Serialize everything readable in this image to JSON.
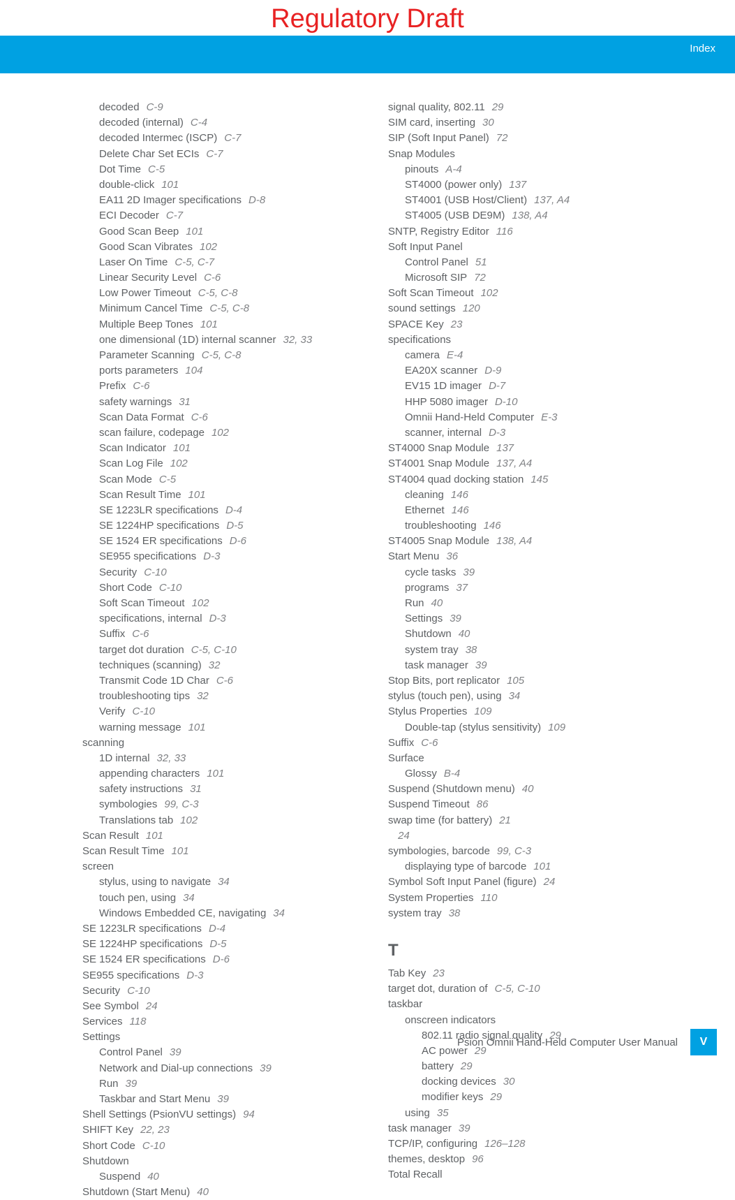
{
  "draft": "Regulatory Draft",
  "header_label": "Index",
  "footer_text": "Psion Omnii Hand-Held Computer User Manual",
  "page_num": "V",
  "section_t": "T",
  "col1": [
    {
      "i": 1,
      "t": "decoded",
      "p": "C-9"
    },
    {
      "i": 1,
      "t": "decoded (internal)",
      "p": "C-4"
    },
    {
      "i": 1,
      "t": "decoded Intermec (ISCP)",
      "p": "C-7"
    },
    {
      "i": 1,
      "t": "Delete Char Set ECIs",
      "p": "C-7"
    },
    {
      "i": 1,
      "t": "Dot Time",
      "p": "C-5"
    },
    {
      "i": 1,
      "t": "double-click",
      "p": "101"
    },
    {
      "i": 1,
      "t": "EA11 2D Imager specifications",
      "p": "D-8"
    },
    {
      "i": 1,
      "t": "ECI Decoder",
      "p": "C-7"
    },
    {
      "i": 1,
      "t": "Good Scan Beep",
      "p": "101"
    },
    {
      "i": 1,
      "t": "Good Scan Vibrates",
      "p": "102"
    },
    {
      "i": 1,
      "t": "Laser On Time",
      "p": "C-5, C-7"
    },
    {
      "i": 1,
      "t": "Linear Security Level",
      "p": "C-6"
    },
    {
      "i": 1,
      "t": "Low Power Timeout",
      "p": "C-5, C-8"
    },
    {
      "i": 1,
      "t": "Minimum Cancel Time",
      "p": "C-5, C-8"
    },
    {
      "i": 1,
      "t": "Multiple Beep Tones",
      "p": "101"
    },
    {
      "i": 1,
      "t": "one dimensional (1D) internal scanner",
      "p": "32, 33"
    },
    {
      "i": 1,
      "t": "Parameter Scanning",
      "p": "C-5, C-8"
    },
    {
      "i": 1,
      "t": "ports parameters",
      "p": "104"
    },
    {
      "i": 1,
      "t": "Prefix",
      "p": "C-6"
    },
    {
      "i": 1,
      "t": "safety warnings",
      "p": "31"
    },
    {
      "i": 1,
      "t": "Scan Data Format",
      "p": "C-6"
    },
    {
      "i": 1,
      "t": "scan failure, codepage",
      "p": "102"
    },
    {
      "i": 1,
      "t": "Scan Indicator",
      "p": "101"
    },
    {
      "i": 1,
      "t": "Scan Log File",
      "p": "102"
    },
    {
      "i": 1,
      "t": "Scan Mode",
      "p": "C-5"
    },
    {
      "i": 1,
      "t": "Scan Result Time",
      "p": "101"
    },
    {
      "i": 1,
      "t": "SE 1223LR specifications",
      "p": "D-4"
    },
    {
      "i": 1,
      "t": "SE 1224HP specifications",
      "p": "D-5"
    },
    {
      "i": 1,
      "t": "SE 1524 ER specifications",
      "p": "D-6"
    },
    {
      "i": 1,
      "t": "SE955 specifications",
      "p": "D-3"
    },
    {
      "i": 1,
      "t": "Security",
      "p": "C-10"
    },
    {
      "i": 1,
      "t": "Short Code",
      "p": "C-10"
    },
    {
      "i": 1,
      "t": "Soft Scan Timeout",
      "p": "102"
    },
    {
      "i": 1,
      "t": "specifications, internal",
      "p": "D-3"
    },
    {
      "i": 1,
      "t": "Suffix",
      "p": "C-6"
    },
    {
      "i": 1,
      "t": "target dot duration",
      "p": "C-5, C-10"
    },
    {
      "i": 1,
      "t": "techniques (scanning)",
      "p": "32"
    },
    {
      "i": 1,
      "t": "Transmit Code 1D Char",
      "p": "C-6"
    },
    {
      "i": 1,
      "t": "troubleshooting tips",
      "p": "32"
    },
    {
      "i": 1,
      "t": "Verify",
      "p": "C-10"
    },
    {
      "i": 1,
      "t": "warning message",
      "p": "101"
    },
    {
      "i": 0,
      "t": "scanning",
      "p": ""
    },
    {
      "i": 1,
      "t": "1D internal",
      "p": "32, 33"
    },
    {
      "i": 1,
      "t": "appending characters",
      "p": "101"
    },
    {
      "i": 1,
      "t": "safety instructions",
      "p": "31"
    },
    {
      "i": 1,
      "t": "symbologies",
      "p": "99, C-3"
    },
    {
      "i": 1,
      "t": "Translations tab",
      "p": "102"
    },
    {
      "i": 0,
      "t": "Scan Result",
      "p": "101"
    },
    {
      "i": 0,
      "t": "Scan Result Time",
      "p": "101"
    },
    {
      "i": 0,
      "t": "screen",
      "p": ""
    },
    {
      "i": 1,
      "t": "stylus, using to navigate",
      "p": "34"
    },
    {
      "i": 1,
      "t": "touch pen, using",
      "p": "34"
    },
    {
      "i": 1,
      "t": "Windows Embedded CE, navigating",
      "p": "34"
    },
    {
      "i": 0,
      "t": "SE 1223LR specifications",
      "p": "D-4"
    },
    {
      "i": 0,
      "t": "SE 1224HP specifications",
      "p": "D-5"
    },
    {
      "i": 0,
      "t": "SE 1524 ER specifications",
      "p": "D-6"
    },
    {
      "i": 0,
      "t": "SE955 specifications",
      "p": "D-3"
    },
    {
      "i": 0,
      "t": "Security",
      "p": "C-10"
    },
    {
      "i": 0,
      "t": " See Symbol",
      "p": "24"
    },
    {
      "i": 0,
      "t": "Services",
      "p": "118"
    },
    {
      "i": 0,
      "t": "Settings",
      "p": ""
    },
    {
      "i": 1,
      "t": "Control Panel",
      "p": "39"
    },
    {
      "i": 1,
      "t": "Network and Dial-up connections",
      "p": "39"
    },
    {
      "i": 1,
      "t": "Run",
      "p": "39"
    },
    {
      "i": 1,
      "t": "Taskbar and Start Menu",
      "p": "39"
    },
    {
      "i": 0,
      "t": "Shell Settings (PsionVU settings)",
      "p": "94"
    },
    {
      "i": 0,
      "t": "SHIFT Key",
      "p": "22, 23"
    },
    {
      "i": 0,
      "t": "Short Code",
      "p": "C-10"
    },
    {
      "i": 0,
      "t": "Shutdown",
      "p": ""
    },
    {
      "i": 1,
      "t": "Suspend",
      "p": "40"
    },
    {
      "i": 0,
      "t": "Shutdown (Start Menu)",
      "p": "40"
    }
  ],
  "col2": [
    {
      "i": 0,
      "t": "signal quality, 802.11",
      "p": "29"
    },
    {
      "i": 0,
      "t": "SIM card, inserting",
      "p": "30"
    },
    {
      "i": 0,
      "t": "SIP (Soft Input Panel)",
      "p": "72"
    },
    {
      "i": 0,
      "t": "Snap Modules",
      "p": ""
    },
    {
      "i": 1,
      "t": "pinouts",
      "p": "A-4"
    },
    {
      "i": 1,
      "t": "ST4000 (power only)",
      "p": "137"
    },
    {
      "i": 1,
      "t": "ST4001 (USB Host/Client)",
      "p": "137, A4"
    },
    {
      "i": 1,
      "t": "ST4005 (USB DE9M)",
      "p": "138, A4"
    },
    {
      "i": 0,
      "t": "SNTP, Registry Editor",
      "p": "116"
    },
    {
      "i": 0,
      "t": "Soft Input Panel",
      "p": ""
    },
    {
      "i": 1,
      "t": "Control Panel",
      "p": "51"
    },
    {
      "i": 1,
      "t": "Microsoft SIP",
      "p": "72"
    },
    {
      "i": 0,
      "t": "Soft Scan Timeout",
      "p": "102"
    },
    {
      "i": 0,
      "t": "sound settings",
      "p": "120"
    },
    {
      "i": 0,
      "t": "SPACE Key",
      "p": "23"
    },
    {
      "i": 0,
      "t": "specifications",
      "p": ""
    },
    {
      "i": 1,
      "t": "camera",
      "p": "E-4"
    },
    {
      "i": 1,
      "t": "EA20X scanner",
      "p": "D-9"
    },
    {
      "i": 1,
      "t": "EV15 1D imager",
      "p": "D-7"
    },
    {
      "i": 1,
      "t": "HHP 5080 imager",
      "p": "D-10"
    },
    {
      "i": 1,
      "t": "Omnii Hand-Held Computer",
      "p": "E-3"
    },
    {
      "i": 1,
      "t": "scanner, internal",
      "p": "D-3"
    },
    {
      "i": 0,
      "t": "ST4000 Snap Module",
      "p": "137"
    },
    {
      "i": 0,
      "t": "ST4001 Snap Module",
      "p": "137, A4"
    },
    {
      "i": 0,
      "t": "ST4004 quad docking station",
      "p": "145"
    },
    {
      "i": 1,
      "t": "cleaning",
      "p": "146"
    },
    {
      "i": 1,
      "t": "Ethernet",
      "p": "146"
    },
    {
      "i": 1,
      "t": "troubleshooting",
      "p": "146"
    },
    {
      "i": 0,
      "t": "ST4005 Snap Module",
      "p": "138, A4"
    },
    {
      "i": 0,
      "t": "Start Menu",
      "p": "36"
    },
    {
      "i": 1,
      "t": "cycle tasks",
      "p": "39"
    },
    {
      "i": 1,
      "t": "programs",
      "p": "37"
    },
    {
      "i": 1,
      "t": "Run",
      "p": "40"
    },
    {
      "i": 1,
      "t": "Settings",
      "p": "39"
    },
    {
      "i": 1,
      "t": "Shutdown",
      "p": "40"
    },
    {
      "i": 1,
      "t": "system tray",
      "p": "38"
    },
    {
      "i": 1,
      "t": "task manager",
      "p": "39"
    },
    {
      "i": 0,
      "t": "Stop Bits, port replicator",
      "p": "105"
    },
    {
      "i": 0,
      "t": "stylus (touch pen), using",
      "p": "34"
    },
    {
      "i": 0,
      "t": "Stylus Properties",
      "p": "109"
    },
    {
      "i": 1,
      "t": "Double-tap (stylus sensitivity)",
      "p": "109"
    },
    {
      "i": 0,
      "t": "Suffix",
      "p": "C-6"
    },
    {
      "i": 0,
      "t": "Surface",
      "p": ""
    },
    {
      "i": 1,
      "t": "Glossy",
      "p": "B-4"
    },
    {
      "i": 0,
      "t": "Suspend (Shutdown menu)",
      "p": "40"
    },
    {
      "i": 0,
      "t": "Suspend Timeout",
      "p": "86"
    },
    {
      "i": 0,
      "t": "swap time (for battery)",
      "p": "21"
    },
    {
      "i": 0,
      "t": " ",
      "p": "24"
    },
    {
      "i": 0,
      "t": "symbologies, barcode",
      "p": "99, C-3"
    },
    {
      "i": 1,
      "t": "displaying type of barcode",
      "p": "101"
    },
    {
      "i": 0,
      "t": "Symbol Soft Input Panel (figure)",
      "p": "24"
    },
    {
      "i": 0,
      "t": "System Properties",
      "p": "110"
    },
    {
      "i": 0,
      "t": "system tray",
      "p": "38"
    }
  ],
  "col2b": [
    {
      "i": 0,
      "t": "Tab Key",
      "p": "23"
    },
    {
      "i": 0,
      "t": "target dot, duration of",
      "p": "C-5, C-10"
    },
    {
      "i": 0,
      "t": "taskbar",
      "p": ""
    },
    {
      "i": 1,
      "t": "onscreen indicators",
      "p": ""
    },
    {
      "i": 2,
      "t": "802.11 radio signal quality",
      "p": "29"
    },
    {
      "i": 2,
      "t": "AC power",
      "p": "29"
    },
    {
      "i": 2,
      "t": "battery",
      "p": "29"
    },
    {
      "i": 2,
      "t": "docking devices",
      "p": "30"
    },
    {
      "i": 2,
      "t": "modifier keys",
      "p": "29"
    },
    {
      "i": 1,
      "t": "using",
      "p": "35"
    },
    {
      "i": 0,
      "t": "task manager",
      "p": "39"
    },
    {
      "i": 0,
      "t": "TCP/IP, configuring",
      "p": "126–128"
    },
    {
      "i": 0,
      "t": "themes, desktop",
      "p": "96"
    },
    {
      "i": 0,
      "t": "Total Recall",
      "p": ""
    }
  ]
}
